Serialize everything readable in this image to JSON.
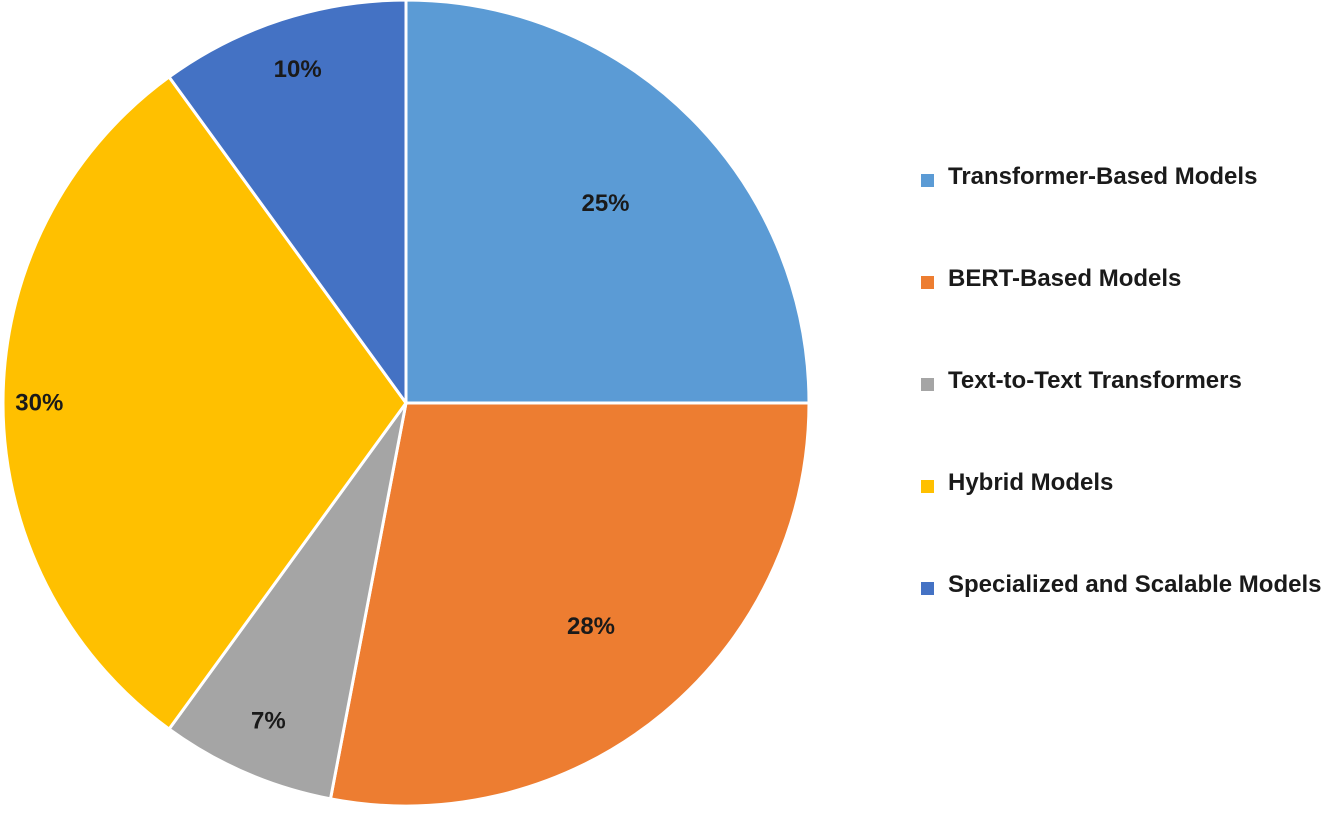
{
  "chart_data": {
    "type": "pie",
    "title": "",
    "start_angle": "top, clockwise",
    "legend_position": "right",
    "slices": [
      {
        "label": "Transformer-Based Models",
        "value": 25,
        "value_label": "25%",
        "color": "#5B9BD5"
      },
      {
        "label": "BERT-Based Models",
        "value": 28,
        "value_label": "28%",
        "color": "#ED7D31"
      },
      {
        "label": "Text-to-Text Transformers",
        "value": 7,
        "value_label": "7%",
        "color": "#A5A5A5"
      },
      {
        "label": "Hybrid Models",
        "value": 30,
        "value_label": "30%",
        "color": "#FFC000"
      },
      {
        "label": "Specialized and Scalable Models",
        "value": 10,
        "value_label": "10%",
        "color": "#4472C4"
      }
    ]
  }
}
